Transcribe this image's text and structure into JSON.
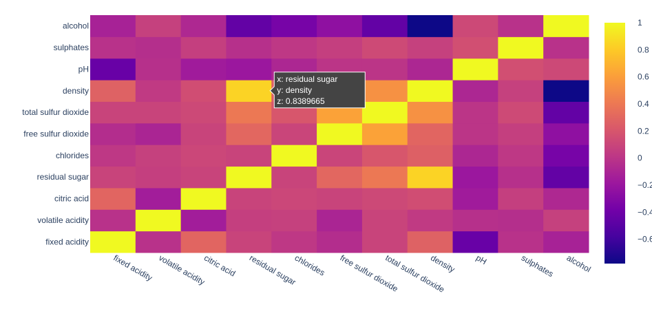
{
  "chart_data": {
    "type": "heatmap",
    "x": [
      "fixed acidity",
      "volatile acidity",
      "citric acid",
      "residual sugar",
      "chlorides",
      "free sulfur dioxide",
      "total sulfur dioxide",
      "density",
      "pH",
      "sulphates",
      "alcohol"
    ],
    "y": [
      "fixed acidity",
      "volatile acidity",
      "citric acid",
      "residual sugar",
      "chlorides",
      "free sulfur dioxide",
      "total sulfur dioxide",
      "density",
      "pH",
      "sulphates",
      "alcohol"
    ],
    "z": [
      [
        1.0,
        -0.02,
        0.29,
        0.09,
        0.02,
        -0.05,
        0.09,
        0.27,
        -0.43,
        -0.02,
        -0.12
      ],
      [
        -0.02,
        1.0,
        -0.15,
        0.06,
        0.07,
        -0.1,
        0.09,
        0.03,
        -0.03,
        -0.04,
        0.07
      ],
      [
        0.29,
        -0.15,
        1.0,
        0.09,
        0.11,
        0.09,
        0.12,
        0.15,
        -0.16,
        0.06,
        -0.08
      ],
      [
        0.09,
        0.06,
        0.09,
        1.0,
        0.09,
        0.3,
        0.4,
        0.84,
        -0.19,
        -0.03,
        -0.45
      ],
      [
        0.02,
        0.07,
        0.11,
        0.09,
        1.0,
        0.1,
        0.2,
        0.26,
        -0.09,
        0.02,
        -0.36
      ],
      [
        -0.05,
        -0.1,
        0.09,
        0.3,
        0.1,
        1.0,
        0.62,
        0.29,
        0.0,
        0.06,
        -0.25
      ],
      [
        0.09,
        0.09,
        0.12,
        0.4,
        0.2,
        0.62,
        1.0,
        0.53,
        0.0,
        0.13,
        -0.45
      ],
      [
        0.27,
        0.03,
        0.15,
        0.84,
        0.26,
        0.29,
        0.53,
        1.0,
        -0.09,
        0.07,
        -0.78
      ],
      [
        -0.43,
        -0.03,
        -0.16,
        -0.19,
        -0.09,
        0.0,
        0.0,
        -0.09,
        1.0,
        0.16,
        0.12
      ],
      [
        -0.02,
        -0.04,
        0.06,
        -0.03,
        0.02,
        0.06,
        0.13,
        0.07,
        0.16,
        1.0,
        -0.02
      ],
      [
        -0.12,
        0.07,
        -0.08,
        -0.45,
        -0.36,
        -0.25,
        -0.45,
        -0.78,
        0.12,
        -0.02,
        1.0
      ]
    ],
    "zmin": -0.78,
    "zmax": 1.0,
    "colorscale": [
      "#0d0887",
      "#46039f",
      "#7201a8",
      "#9c179e",
      "#bd3786",
      "#d8576b",
      "#ed7953",
      "#fb9f3a",
      "#fdca26",
      "#f0f921"
    ],
    "colorbar": {
      "ticks": [
        1,
        0.8,
        0.6,
        0.4,
        0.2,
        0,
        -0.2,
        -0.4,
        -0.6
      ],
      "tick_labels": [
        "1",
        "0.8",
        "0.6",
        "0.4",
        "0.2",
        "0",
        "−0.2",
        "−0.4",
        "−0.6"
      ]
    },
    "hover": {
      "x_line": "x: residual sugar",
      "y_line": "y: density",
      "z_line": "z: 0.8389665"
    }
  }
}
